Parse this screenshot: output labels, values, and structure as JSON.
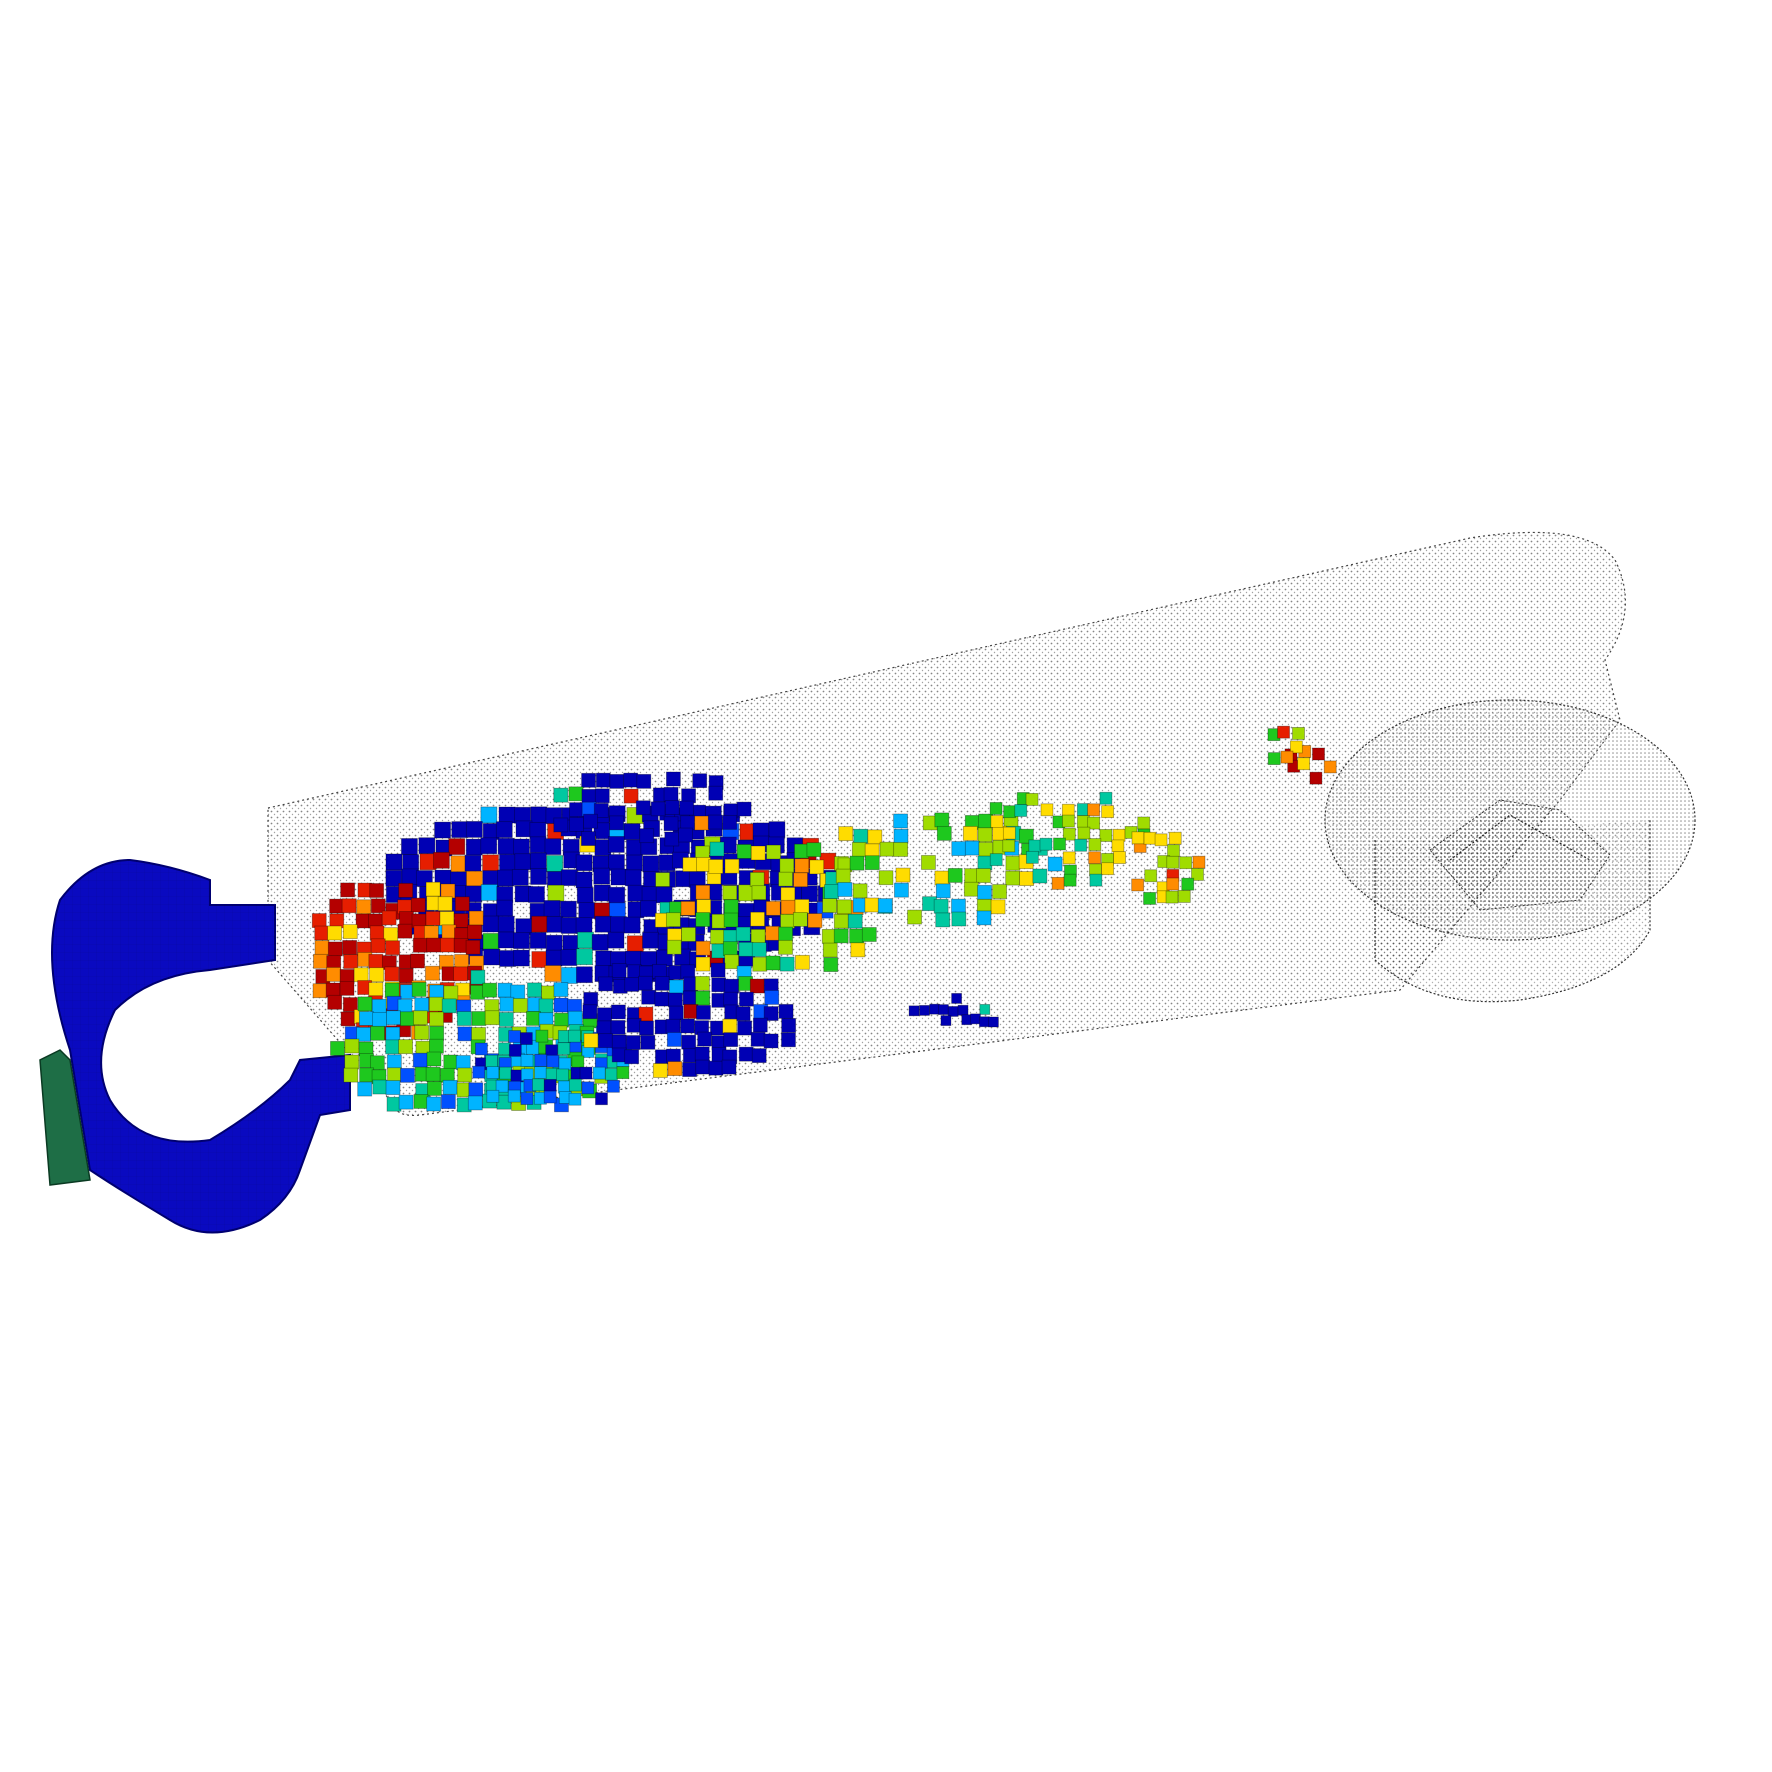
{
  "scene": {
    "kind": "3d-voxel-simulation-render",
    "background_color": "#ffffff",
    "mesh_outline_color": "#222222",
    "colormap": [
      "#0000b4",
      "#0050ff",
      "#00b4ff",
      "#00c8a0",
      "#1ec81e",
      "#a0dc00",
      "#ffdc00",
      "#ff8c00",
      "#e61e00",
      "#b40000"
    ],
    "handle_color": "#0a0ac0",
    "handle_end_cap_color": "#1e6e46",
    "wireframe_cup": {
      "label": "",
      "style": "dotted-wireframe"
    },
    "dominant_regions": [
      {
        "name": "handle-loop",
        "color": "#0a0ac0"
      },
      {
        "name": "fill-front",
        "color": "#0000c8"
      },
      {
        "name": "hot-zone",
        "color": "#c80000"
      },
      {
        "name": "mid-zone",
        "color": "#28c828"
      },
      {
        "name": "cool-pool",
        "color": "#3cb4ff"
      }
    ]
  }
}
